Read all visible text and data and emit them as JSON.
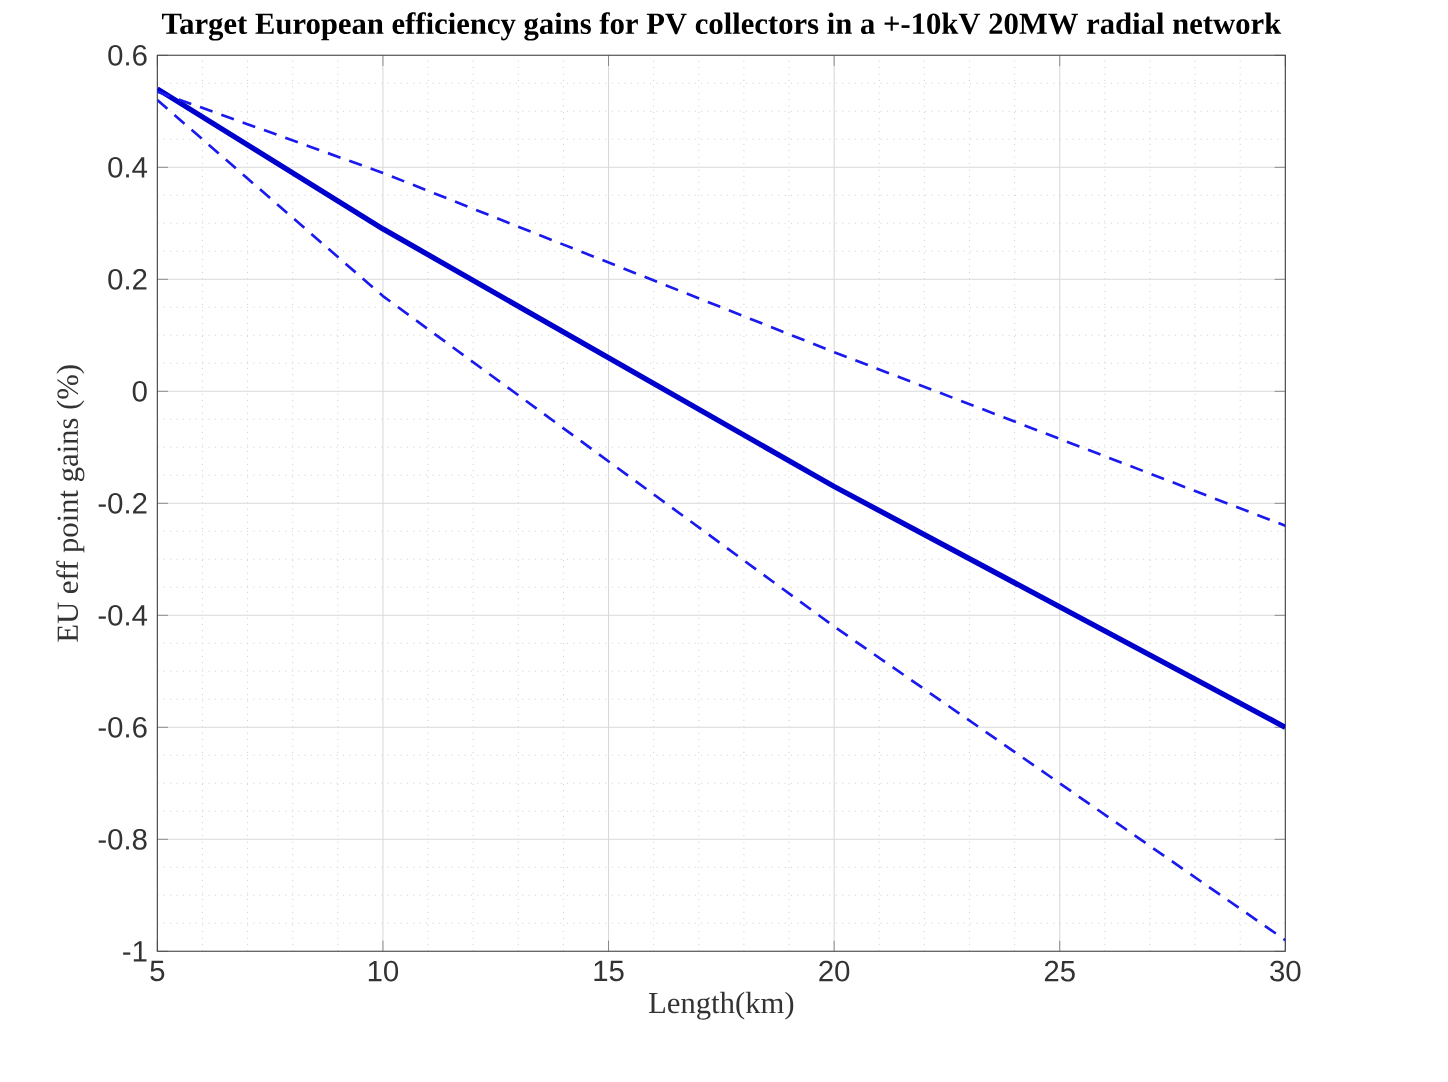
{
  "chart_data": {
    "type": "line",
    "title": "Target European efficiency gains for PV collectors in a +-10kV 20MW radial network",
    "xlabel": "Length(km)",
    "ylabel": "EU eff point gains (%)",
    "x": [
      5,
      10,
      20,
      30
    ],
    "series": [
      {
        "color": "#0000cc",
        "values": [
          0.54,
          0.29,
          -0.17,
          -0.6
        ],
        "line_style": "solid"
      },
      {
        "color": "#1a1aee",
        "values": [
          0.535,
          0.39,
          0.07,
          -0.24
        ],
        "line_style": "dashed"
      },
      {
        "color": "#1a1aee",
        "values": [
          0.52,
          0.17,
          -0.42,
          -0.98
        ],
        "line_style": "dashed"
      }
    ],
    "xlim": [
      5,
      30
    ],
    "xticks": [
      5,
      10,
      15,
      20,
      25,
      30
    ],
    "ylim": [
      -1,
      0.6
    ],
    "yticks": [
      -1,
      -0.8,
      -0.6,
      -0.4,
      -0.2,
      0,
      0.2,
      0.4,
      0.6
    ],
    "grid": true,
    "marker": "none"
  }
}
